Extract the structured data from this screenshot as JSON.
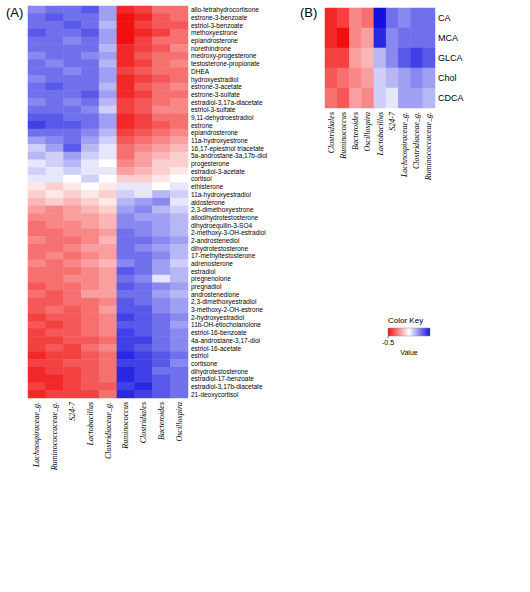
{
  "chart_data": [
    {
      "type": "heatmap",
      "title": "(A)",
      "x": [
        "Lachnospiraceae_g.",
        "Ruminococcaceae_g.",
        "S24-7",
        "Lactobacillus",
        "Clostridiaceae_g.",
        "Ruminococcus",
        "Clostridiales",
        "Bacteroides",
        "Oscillospira"
      ],
      "y": [
        "allo-tetrahydrocortisone",
        "estrone-3-benzoate",
        "estriol-3-benzoate",
        "methoxyestrone",
        "epiandrosterone",
        "norethindrone",
        "medroxy-progesterone",
        "testosterone-propionate",
        "DHEA",
        "hydroxyestradiol",
        "estrone-3-acetate",
        "estrone-3-sulfate",
        "estradiol-3,17a-diacetate",
        "estriol-3-sulfate",
        "9,11-dehydroestradiol",
        "estrone",
        "epiandrosterone",
        "11a-hydroxyestrone",
        "16,17-epiestriol triacetate",
        "5a-androstane-3a,17b-diol",
        "progesterone",
        "estradiol-3-acetate",
        "cortisol",
        "ethisterone",
        "11a-hydroxyestradiol",
        "aldosterone",
        "2,3-dimethoxyestrone",
        "allodihydrotestosterone",
        "dihydroequilin-3-SO4",
        "2-methoxy-3-OH-estradiol",
        "2-androstenediol",
        "dihydrotestosterone",
        "17-methyltestosterone",
        "adrenosterone",
        "estradiol",
        "pregnenolone",
        "pregnadiol",
        "androstenedione",
        "2,3-dimethoxyestradiol",
        "3-methoxy-2-OH-estrone",
        "2-hydroxyestradiol",
        "11b-OH-etiocholanolone",
        "estriol-16-benzoate",
        "4a-androstane-3,17-diol",
        "estriol-16-acetate",
        "estriol",
        "cortisone",
        "dihydrotestosterone",
        "estradiol-17-benzoate",
        "estradiol-3,17b-diacetate",
        "21-deoxycortisol"
      ],
      "values": [
        [
          0.25,
          0.3,
          0.3,
          0.35,
          0.2,
          -0.45,
          -0.4,
          -0.3,
          -0.3
        ],
        [
          0.3,
          0.35,
          0.3,
          0.3,
          0.2,
          -0.5,
          -0.45,
          -0.35,
          -0.3
        ],
        [
          0.3,
          0.3,
          0.35,
          0.3,
          0.15,
          -0.5,
          -0.4,
          -0.35,
          -0.35
        ],
        [
          0.35,
          0.3,
          0.3,
          0.35,
          0.2,
          -0.5,
          -0.45,
          -0.4,
          -0.3
        ],
        [
          0.3,
          0.3,
          0.25,
          0.3,
          0.2,
          -0.5,
          -0.4,
          -0.3,
          -0.3
        ],
        [
          0.3,
          0.3,
          0.3,
          0.3,
          0.15,
          -0.45,
          -0.4,
          -0.35,
          -0.25
        ],
        [
          0.25,
          0.3,
          0.3,
          0.25,
          0.2,
          -0.45,
          -0.35,
          -0.3,
          -0.3
        ],
        [
          0.3,
          0.25,
          0.3,
          0.3,
          0.15,
          -0.45,
          -0.4,
          -0.3,
          -0.25
        ],
        [
          0.3,
          0.3,
          0.25,
          0.3,
          0.2,
          -0.4,
          -0.35,
          -0.3,
          -0.3
        ],
        [
          0.25,
          0.3,
          0.3,
          0.3,
          0.2,
          -0.45,
          -0.4,
          -0.35,
          -0.3
        ],
        [
          0.3,
          0.35,
          0.3,
          0.3,
          0.15,
          -0.45,
          -0.35,
          -0.3,
          -0.25
        ],
        [
          0.3,
          0.3,
          0.3,
          0.35,
          0.2,
          -0.45,
          -0.4,
          -0.3,
          -0.3
        ],
        [
          0.25,
          0.3,
          0.25,
          0.3,
          0.15,
          -0.4,
          -0.35,
          -0.3,
          -0.25
        ],
        [
          0.3,
          0.3,
          0.3,
          0.25,
          0.1,
          -0.4,
          -0.35,
          -0.25,
          -0.25
        ],
        [
          0.35,
          0.35,
          0.3,
          0.3,
          0.2,
          -0.45,
          -0.4,
          -0.3,
          -0.3
        ],
        [
          0.4,
          0.35,
          0.35,
          0.3,
          0.2,
          -0.45,
          -0.4,
          -0.35,
          -0.3
        ],
        [
          0.3,
          0.3,
          0.3,
          0.25,
          0.15,
          -0.4,
          -0.35,
          -0.3,
          -0.25
        ],
        [
          0.2,
          0.25,
          0.3,
          0.2,
          0.1,
          -0.35,
          -0.3,
          -0.25,
          -0.2
        ],
        [
          0.1,
          0.2,
          0.35,
          0.15,
          0.05,
          -0.3,
          -0.25,
          -0.2,
          -0.15
        ],
        [
          0.15,
          0.1,
          0.2,
          0.1,
          0.05,
          -0.3,
          -0.2,
          -0.15,
          -0.1
        ],
        [
          0.05,
          0.1,
          0.15,
          0.05,
          0.0,
          -0.25,
          -0.2,
          -0.1,
          -0.1
        ],
        [
          0.1,
          0.05,
          0.1,
          0.05,
          0.05,
          -0.2,
          -0.15,
          -0.1,
          -0.05
        ],
        [
          0.05,
          0.05,
          0.0,
          0.1,
          0.0,
          -0.1,
          -0.1,
          -0.05,
          0.0
        ],
        [
          -0.05,
          -0.1,
          -0.05,
          0.0,
          -0.05,
          0.05,
          0.05,
          0.0,
          0.05
        ],
        [
          -0.1,
          -0.05,
          -0.1,
          -0.05,
          -0.1,
          0.1,
          0.05,
          0.15,
          0.1
        ],
        [
          -0.15,
          -0.1,
          -0.15,
          -0.1,
          -0.05,
          0.15,
          0.2,
          0.25,
          0.05
        ],
        [
          -0.2,
          -0.25,
          -0.2,
          -0.15,
          -0.1,
          0.2,
          0.25,
          0.15,
          0.1
        ],
        [
          -0.25,
          -0.25,
          -0.2,
          -0.2,
          -0.15,
          0.25,
          0.2,
          0.2,
          0.15
        ],
        [
          -0.3,
          -0.25,
          -0.25,
          -0.2,
          -0.15,
          0.25,
          0.25,
          0.2,
          0.15
        ],
        [
          -0.3,
          -0.3,
          -0.25,
          -0.25,
          -0.2,
          0.3,
          0.25,
          0.2,
          0.15
        ],
        [
          -0.25,
          -0.3,
          -0.3,
          -0.25,
          -0.15,
          0.3,
          0.3,
          0.25,
          0.2
        ],
        [
          -0.3,
          -0.3,
          -0.25,
          -0.2,
          -0.2,
          0.3,
          0.25,
          0.2,
          0.15
        ],
        [
          -0.3,
          -0.25,
          -0.3,
          -0.25,
          -0.2,
          0.3,
          0.3,
          0.25,
          0.15
        ],
        [
          -0.25,
          -0.3,
          -0.25,
          -0.2,
          -0.15,
          0.25,
          0.3,
          0.2,
          0.1
        ],
        [
          -0.3,
          -0.3,
          -0.3,
          -0.25,
          -0.2,
          0.35,
          0.3,
          0.2,
          0.15
        ],
        [
          -0.3,
          -0.3,
          -0.25,
          -0.25,
          -0.2,
          0.3,
          0.25,
          0.05,
          0.15
        ],
        [
          -0.35,
          -0.3,
          -0.3,
          -0.25,
          -0.2,
          0.35,
          0.3,
          0.25,
          0.2
        ],
        [
          -0.3,
          -0.35,
          -0.3,
          -0.2,
          -0.2,
          0.3,
          0.3,
          0.2,
          0.15
        ],
        [
          -0.35,
          -0.35,
          -0.3,
          -0.3,
          -0.25,
          0.35,
          0.3,
          0.25,
          0.2
        ],
        [
          -0.35,
          -0.3,
          -0.35,
          -0.3,
          -0.2,
          0.35,
          0.35,
          0.25,
          0.2
        ],
        [
          -0.4,
          -0.35,
          -0.35,
          -0.3,
          -0.25,
          0.4,
          0.35,
          0.3,
          0.25
        ],
        [
          -0.35,
          -0.4,
          -0.35,
          -0.3,
          -0.25,
          0.35,
          0.35,
          0.3,
          0.2
        ],
        [
          -0.4,
          -0.35,
          -0.35,
          -0.3,
          -0.25,
          0.4,
          0.35,
          0.3,
          0.25
        ],
        [
          -0.4,
          -0.4,
          -0.35,
          -0.35,
          -0.3,
          0.4,
          0.4,
          0.3,
          0.25
        ],
        [
          -0.4,
          -0.35,
          -0.4,
          -0.3,
          -0.25,
          0.4,
          0.35,
          0.3,
          0.25
        ],
        [
          -0.45,
          -0.4,
          -0.4,
          -0.35,
          -0.3,
          0.45,
          0.4,
          0.35,
          0.3
        ],
        [
          -0.4,
          -0.4,
          -0.35,
          -0.35,
          -0.3,
          0.4,
          0.4,
          0.35,
          0.25
        ],
        [
          -0.45,
          -0.4,
          -0.4,
          -0.35,
          -0.3,
          0.45,
          0.4,
          0.3,
          0.3
        ],
        [
          -0.45,
          -0.45,
          -0.4,
          -0.35,
          -0.3,
          0.45,
          0.4,
          0.35,
          0.3
        ],
        [
          -0.4,
          -0.45,
          -0.4,
          -0.35,
          -0.35,
          0.4,
          0.45,
          0.35,
          0.3
        ],
        [
          -0.45,
          -0.4,
          -0.4,
          -0.4,
          -0.3,
          0.45,
          0.4,
          0.35,
          0.3
        ]
      ],
      "color_range": [
        -0.5,
        0.5
      ]
    },
    {
      "type": "heatmap",
      "title": "(B)",
      "x": [
        "Clostridiales",
        "Ruminococcus",
        "Bacteroides",
        "Oscillospira",
        "Lactobacillus",
        "S24-7",
        "Lachnospiraceae_g.",
        "Clostridiaceae_g.",
        "Ruminococcaceae_g."
      ],
      "y": [
        "CA",
        "MCA",
        "GLCA",
        "Chol",
        "CDCA"
      ],
      "values": [
        [
          -0.45,
          -0.4,
          -0.25,
          -0.3,
          0.5,
          0.3,
          0.25,
          0.3,
          0.3
        ],
        [
          -0.45,
          -0.5,
          -0.25,
          -0.2,
          0.45,
          0.25,
          0.3,
          0.3,
          0.3
        ],
        [
          -0.4,
          -0.4,
          -0.2,
          -0.15,
          0.15,
          0.25,
          0.35,
          0.4,
          0.35
        ],
        [
          -0.35,
          -0.3,
          -0.25,
          -0.2,
          0.1,
          0.15,
          0.2,
          0.25,
          0.2
        ],
        [
          -0.3,
          -0.35,
          -0.2,
          -0.25,
          0.1,
          0.05,
          0.2,
          0.2,
          0.15
        ]
      ],
      "color_range": [
        -0.5,
        0.5
      ],
      "color_key": {
        "title": "Color Key",
        "label": "Value",
        "ticks": [
          -0.5
        ]
      }
    }
  ]
}
